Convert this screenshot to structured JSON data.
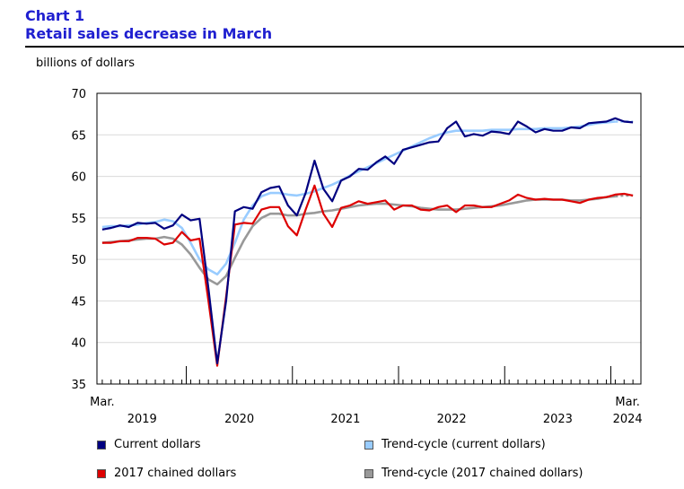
{
  "header": {
    "chart_number": "Chart 1",
    "title": "Retail sales decrease in March"
  },
  "chart_data": {
    "type": "line",
    "title": "Retail sales decrease in March",
    "ylabel": "billions of dollars",
    "ylim": [
      35,
      70
    ],
    "yticks": [
      35,
      40,
      45,
      50,
      55,
      60,
      65,
      70
    ],
    "x_start": "2019-03",
    "x_end": "2024-03",
    "x_start_label": "Mar.",
    "x_end_label": "Mar.",
    "year_labels": [
      "2019",
      "2020",
      "2021",
      "2022",
      "2023",
      "2024"
    ],
    "grid": "horizontal",
    "legend_position": "bottom",
    "series": [
      {
        "name": "Current dollars",
        "color": "#000080",
        "style": "solid",
        "values": [
          53.6,
          53.8,
          54.1,
          53.9,
          54.4,
          54.3,
          54.4,
          53.7,
          54.1,
          55.4,
          54.7,
          54.9,
          46.5,
          37.5,
          45.0,
          55.8,
          56.3,
          56.1,
          58.1,
          58.6,
          58.8,
          56.5,
          55.3,
          58.0,
          61.9,
          58.5,
          57.0,
          59.5,
          60.0,
          60.9,
          60.8,
          61.7,
          62.4,
          61.5,
          63.2,
          63.5,
          63.8,
          64.1,
          64.2,
          65.8,
          66.6,
          64.8,
          65.1,
          64.9,
          65.4,
          65.3,
          65.1,
          66.6,
          66.0,
          65.3,
          65.7,
          65.5,
          65.5,
          65.9,
          65.8,
          66.4,
          66.5,
          66.6,
          67.0,
          66.6,
          66.5
        ]
      },
      {
        "name": "Trend-cycle (current dollars)",
        "color": "#99ccff",
        "style": "solid",
        "projected_from_index": 58,
        "values": [
          53.9,
          54.0,
          54.0,
          54.1,
          54.2,
          54.4,
          54.5,
          54.8,
          54.6,
          53.8,
          52.0,
          50.0,
          48.8,
          48.2,
          49.5,
          52.0,
          54.8,
          56.5,
          57.6,
          58.0,
          58.0,
          57.8,
          57.7,
          57.9,
          58.2,
          58.6,
          59.0,
          59.5,
          60.1,
          60.6,
          61.1,
          61.6,
          62.1,
          62.6,
          63.1,
          63.6,
          64.1,
          64.6,
          65.0,
          65.3,
          65.5,
          65.5,
          65.5,
          65.5,
          65.6,
          65.6,
          65.6,
          65.7,
          65.7,
          65.7,
          65.8,
          65.8,
          65.8,
          65.9,
          66.0,
          66.2,
          66.4,
          66.5,
          66.6,
          66.6,
          66.6
        ]
      },
      {
        "name": "2017 chained dollars",
        "color": "#dd0000",
        "style": "solid",
        "values": [
          52.0,
          52.0,
          52.2,
          52.2,
          52.6,
          52.6,
          52.5,
          51.8,
          52.0,
          53.3,
          52.3,
          52.5,
          45.0,
          37.2,
          45.5,
          54.2,
          54.4,
          54.3,
          56.0,
          56.3,
          56.3,
          54.0,
          52.9,
          56.0,
          58.9,
          55.5,
          53.9,
          56.2,
          56.5,
          57.0,
          56.7,
          56.9,
          57.1,
          56.0,
          56.5,
          56.5,
          56.0,
          55.9,
          56.3,
          56.5,
          55.7,
          56.5,
          56.5,
          56.3,
          56.3,
          56.7,
          57.1,
          57.8,
          57.4,
          57.2,
          57.3,
          57.2,
          57.2,
          57.0,
          56.8,
          57.2,
          57.4,
          57.5,
          57.8,
          57.9,
          57.7
        ]
      },
      {
        "name": "Trend-cycle (2017 chained dollars)",
        "color": "#999999",
        "style": "solid",
        "projected_from_index": 58,
        "values": [
          52.0,
          52.1,
          52.2,
          52.3,
          52.4,
          52.5,
          52.5,
          52.7,
          52.5,
          51.8,
          50.6,
          49.0,
          47.6,
          47.0,
          48.0,
          50.2,
          52.3,
          54.0,
          55.0,
          55.5,
          55.5,
          55.3,
          55.3,
          55.5,
          55.6,
          55.8,
          55.9,
          56.1,
          56.3,
          56.5,
          56.6,
          56.7,
          56.7,
          56.6,
          56.5,
          56.4,
          56.2,
          56.1,
          56.0,
          56.0,
          56.0,
          56.1,
          56.2,
          56.3,
          56.4,
          56.5,
          56.7,
          56.9,
          57.1,
          57.2,
          57.2,
          57.2,
          57.2,
          57.1,
          57.1,
          57.2,
          57.3,
          57.5,
          57.6,
          57.7,
          57.7
        ]
      }
    ]
  },
  "legend": [
    {
      "label": "Current dollars",
      "color": "#000080"
    },
    {
      "label": "Trend-cycle (current dollars)",
      "color": "#99ccff"
    },
    {
      "label": "2017 chained dollars",
      "color": "#dd0000"
    },
    {
      "label": "Trend-cycle (2017 chained dollars)",
      "color": "#999999"
    }
  ]
}
